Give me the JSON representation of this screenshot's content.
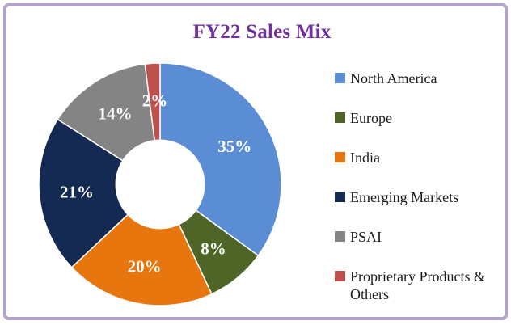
{
  "frame": {
    "border_color": "#b3a2c7",
    "background": "#ffffff"
  },
  "title": {
    "text": "FY22 Sales Mix",
    "color": "#7030a0"
  },
  "chart_data": {
    "type": "pie",
    "subtype": "donut",
    "title": "FY22 Sales Mix",
    "start_angle_deg": 0,
    "direction": "clockwise",
    "inner_radius_ratio": 0.37,
    "legend_position": "right",
    "categories": [
      "North America",
      "Europe",
      "India",
      "Emerging Markets",
      "PSAI",
      "Proprietary Products & Others"
    ],
    "values": [
      35,
      8,
      20,
      21,
      14,
      2
    ],
    "data_labels": [
      "35%",
      "8%",
      "20%",
      "21%",
      "14%",
      "2%"
    ],
    "colors": [
      "#5b8dd5",
      "#4f6528",
      "#e8760e",
      "#152a52",
      "#848484",
      "#c0504d"
    ],
    "data_label_color": "#ffffff",
    "slice_border_color": "#ffffff"
  }
}
